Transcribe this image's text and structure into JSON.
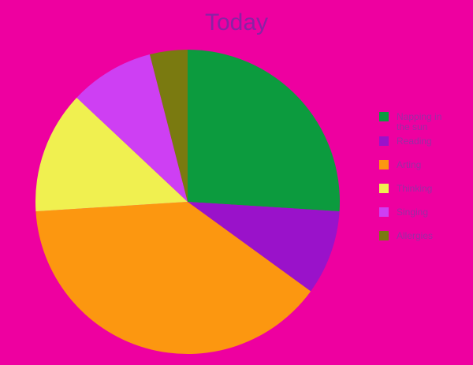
{
  "colors": {
    "background": "#EE00A0",
    "title_text": "#8B21A4",
    "legend_text": "#9A2CA4"
  },
  "chart_data": {
    "type": "pie",
    "title": "Today",
    "legend_position": "right",
    "start_angle_deg": 0,
    "direction": "clockwise",
    "slices": [
      {
        "label": "Napping in the sun",
        "value_pct": 26,
        "color": "#0C9B3E"
      },
      {
        "label": "Reading",
        "value_pct": 9,
        "color": "#9A12CA"
      },
      {
        "label": "Arting",
        "value_pct": 39,
        "color": "#FC9710"
      },
      {
        "label": "Thinking",
        "value_pct": 13,
        "color": "#F0F050"
      },
      {
        "label": "Singing",
        "value_pct": 9,
        "color": "#CE3FF3"
      },
      {
        "label": "Allergies",
        "value_pct": 4,
        "color": "#7A7A10"
      }
    ]
  }
}
